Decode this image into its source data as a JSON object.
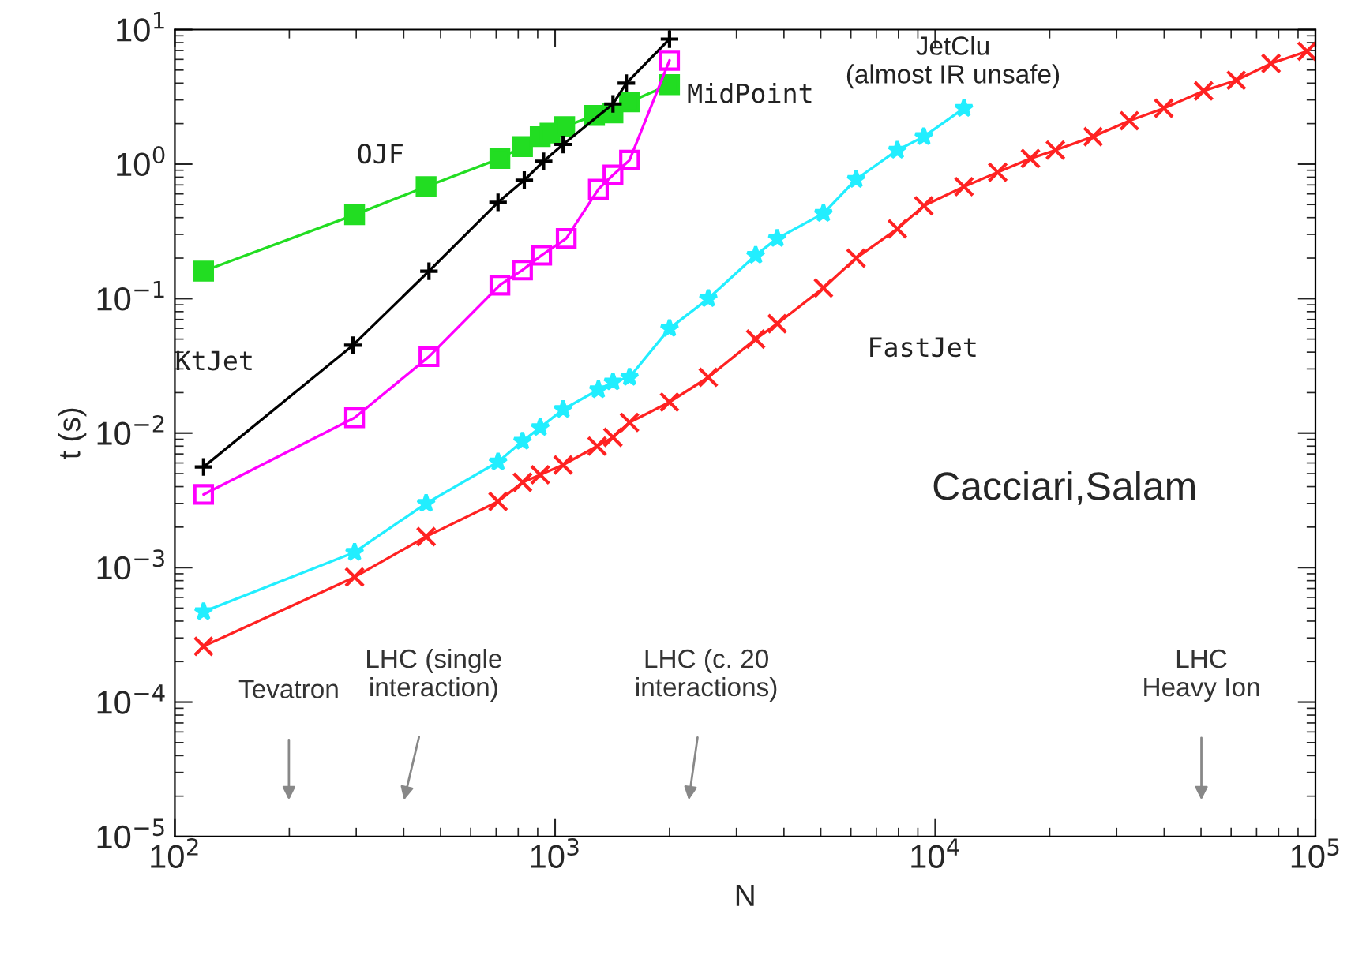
{
  "chart_data": {
    "type": "line",
    "xlabel": "N",
    "ylabel": "t (s)",
    "log": "xy",
    "grid": false,
    "legend": false,
    "xlim": [
      100,
      100000
    ],
    "ylim": [
      1e-05,
      10
    ],
    "xticks": [
      {
        "value": 100,
        "label": "10$^{2}$"
      },
      {
        "value": 1000,
        "label": "10$^{3}$"
      },
      {
        "value": 10000,
        "label": "10$^{4}$"
      },
      {
        "value": 100000,
        "label": "10$^{5}$"
      }
    ],
    "yticks": [
      {
        "value": 1e-05,
        "label": "10$^{−5}$"
      },
      {
        "value": 0.0001,
        "label": "10$^{−4}$"
      },
      {
        "value": 0.001,
        "label": "10$^{−3}$"
      },
      {
        "value": 0.01,
        "label": "10$^{−2}$"
      },
      {
        "value": 0.1,
        "label": "10$^{−1}$"
      },
      {
        "value": 1,
        "label": "10$^{0}$"
      },
      {
        "value": 10,
        "label": "10$^{1}$"
      }
    ],
    "series": [
      {
        "name": "OJF",
        "color": "#22dd22",
        "marker": "square",
        "x": [
          119,
          297,
          458,
          716,
          821,
          914,
          970,
          1060,
          1270,
          1420,
          1570,
          2000
        ],
        "values": [
          0.16,
          0.42,
          0.68,
          1.1,
          1.35,
          1.6,
          1.7,
          1.9,
          2.3,
          2.4,
          2.9,
          3.9
        ]
      },
      {
        "name": "KtJet",
        "color": "#000000",
        "marker": "cross",
        "x": [
          119,
          294,
          466,
          708,
          830,
          933,
          1050,
          1420,
          1540,
          2000
        ],
        "values": [
          0.0056,
          0.045,
          0.16,
          0.52,
          0.76,
          1.05,
          1.4,
          2.8,
          4.0,
          8.5
        ]
      },
      {
        "name": "MidPoint",
        "color": "#ff00ff",
        "marker": "square_open",
        "x": [
          119,
          297,
          466,
          716,
          821,
          922,
          1070,
          1300,
          1420,
          1570,
          2000
        ],
        "values": [
          0.0035,
          0.013,
          0.037,
          0.126,
          0.163,
          0.21,
          0.28,
          0.65,
          0.83,
          1.07,
          5.9
        ]
      },
      {
        "name": "JetClu\n(almost IR unsafe)",
        "color": "#22eeff",
        "marker": "star",
        "x": [
          119,
          297,
          458,
          708,
          821,
          914,
          1050,
          1300,
          1420,
          1570,
          2000,
          2530,
          3370,
          3840,
          5080,
          6190,
          7950,
          9330,
          11900
        ],
        "values": [
          0.00047,
          0.0013,
          0.003,
          0.0061,
          0.0087,
          0.011,
          0.015,
          0.021,
          0.024,
          0.026,
          0.06,
          0.1,
          0.21,
          0.28,
          0.43,
          0.77,
          1.27,
          1.6,
          2.6
        ]
      },
      {
        "name": "FastJet",
        "color": "#ff2222",
        "marker": "x",
        "x": [
          119,
          297,
          458,
          708,
          821,
          914,
          1050,
          1290,
          1420,
          1570,
          2000,
          2530,
          3370,
          3840,
          5080,
          6190,
          7950,
          9330,
          11900,
          14600,
          17800,
          20700,
          26000,
          32400,
          39900,
          50800,
          61900,
          76400,
          95000
        ],
        "values": [
          0.00026,
          0.00085,
          0.0017,
          0.0031,
          0.0043,
          0.0049,
          0.0058,
          0.008,
          0.0093,
          0.012,
          0.017,
          0.026,
          0.05,
          0.065,
          0.12,
          0.2,
          0.33,
          0.49,
          0.68,
          0.87,
          1.1,
          1.27,
          1.6,
          2.1,
          2.6,
          3.5,
          4.2,
          5.6,
          6.9
        ]
      }
    ],
    "annotations": [
      "Tevatron",
      "LHC (single\ninteraction)",
      "LHC (c. 20\ninteractions)",
      "LHC\nHeavy Ion",
      "Cacciari,Salam"
    ]
  }
}
